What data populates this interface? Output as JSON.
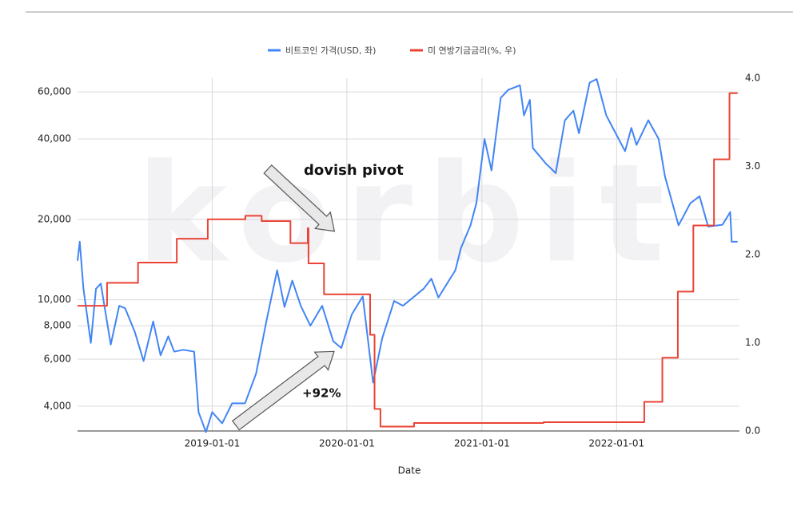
{
  "chart_data": {
    "type": "line",
    "watermark": "korbit",
    "xlabel": "Date",
    "xlim": [
      "2018-01-01",
      "2022-11-30"
    ],
    "xticks": [
      "2019-01-01",
      "2020-01-01",
      "2021-01-01",
      "2022-01-01"
    ],
    "ylim": [
      3230,
      67500
    ],
    "log_y": true,
    "yticks": [
      {
        "value": 4000,
        "label": "4,000"
      },
      {
        "value": 6000,
        "label": "6,000"
      },
      {
        "value": 8000,
        "label": "8,000"
      },
      {
        "value": 10000,
        "label": "10,000"
      },
      {
        "value": 20000,
        "label": "20,000"
      },
      {
        "value": 40000,
        "label": "40,000"
      },
      {
        "value": 60000,
        "label": "60,000"
      }
    ],
    "y2lim": [
      0,
      4
    ],
    "y2ticks": [
      {
        "value": 0,
        "label": "0.0"
      },
      {
        "value": 1,
        "label": "1.0"
      },
      {
        "value": 2,
        "label": "2.0"
      },
      {
        "value": 3,
        "label": "3.0"
      },
      {
        "value": 4,
        "label": "4.0"
      }
    ],
    "grid": true,
    "legend": "top",
    "annotations": [
      {
        "text": "dovish pivot"
      },
      {
        "text": "+92%"
      }
    ],
    "series": [
      {
        "name": "비트코인 가격(USD, 좌)",
        "color": "#4285f4",
        "x": [
          "2018-01-01",
          "2018-01-07",
          "2018-01-17",
          "2018-02-06",
          "2018-02-20",
          "2018-03-05",
          "2018-04-01",
          "2018-04-24",
          "2018-05-10",
          "2018-06-05",
          "2018-06-29",
          "2018-07-25",
          "2018-08-14",
          "2018-09-04",
          "2018-09-20",
          "2018-10-15",
          "2018-11-13",
          "2018-11-25",
          "2018-12-15",
          "2019-01-01",
          "2019-01-28",
          "2019-02-24",
          "2019-03-31",
          "2019-04-30",
          "2019-05-30",
          "2019-06-26",
          "2019-07-16",
          "2019-08-06",
          "2019-08-29",
          "2019-09-24",
          "2019-10-26",
          "2019-11-25",
          "2019-12-17",
          "2020-01-14",
          "2020-02-13",
          "2020-03-12",
          "2020-04-06",
          "2020-05-08",
          "2020-06-01",
          "2020-07-27",
          "2020-08-17",
          "2020-09-05",
          "2020-10-21",
          "2020-11-05",
          "2020-12-01",
          "2020-12-17",
          "2021-01-08",
          "2021-01-27",
          "2021-02-21",
          "2021-03-13",
          "2021-04-14",
          "2021-04-25",
          "2021-05-11",
          "2021-05-19",
          "2021-06-22",
          "2021-07-20",
          "2021-08-14",
          "2021-09-06",
          "2021-09-21",
          "2021-10-20",
          "2021-11-08",
          "2021-12-04",
          "2022-01-24",
          "2022-02-10",
          "2022-02-24",
          "2022-03-28",
          "2022-04-25",
          "2022-05-12",
          "2022-06-18",
          "2022-07-20",
          "2022-08-14",
          "2022-09-06",
          "2022-10-15",
          "2022-11-05",
          "2022-11-09",
          "2022-11-25"
        ],
        "values": [
          14000,
          16500,
          11000,
          6900,
          11000,
          11500,
          6800,
          9500,
          9300,
          7600,
          5900,
          8300,
          6200,
          7300,
          6400,
          6500,
          6400,
          3800,
          3200,
          3800,
          3450,
          4100,
          4100,
          5300,
          8600,
          12900,
          9400,
          11800,
          9500,
          8000,
          9500,
          7000,
          6600,
          8800,
          10300,
          4900,
          7200,
          9900,
          9500,
          11000,
          12000,
          10200,
          12900,
          15600,
          19000,
          23000,
          40000,
          30500,
          57000,
          61000,
          63500,
          49000,
          56000,
          37000,
          32500,
          29800,
          47000,
          51000,
          42000,
          65000,
          67000,
          49000,
          36000,
          44000,
          38000,
          47000,
          40000,
          29000,
          19000,
          23000,
          24400,
          18800,
          19100,
          21300,
          16500,
          16500
        ]
      },
      {
        "name": "미 연방기금금리(%, 우)",
        "color": "#ea4335",
        "axis": "y2",
        "line_shape": "step",
        "x": [
          "2018-01-01",
          "2018-03-22",
          "2018-06-14",
          "2018-09-27",
          "2018-12-20",
          "2019-04-01",
          "2019-05-15",
          "2019-08-01",
          "2019-09-17",
          "2019-09-19",
          "2019-10-31",
          "2020-03-04",
          "2020-03-16",
          "2020-04-01",
          "2020-07-01",
          "2021-06-17",
          "2022-03-17",
          "2022-05-05",
          "2022-06-16",
          "2022-07-28",
          "2022-09-22",
          "2022-11-03",
          "2022-11-25"
        ],
        "values": [
          1.42,
          1.68,
          1.91,
          2.18,
          2.4,
          2.44,
          2.38,
          2.13,
          2.3,
          1.9,
          1.55,
          1.09,
          0.25,
          0.05,
          0.09,
          0.1,
          0.33,
          0.83,
          1.58,
          2.33,
          3.08,
          3.83,
          3.83
        ]
      }
    ]
  }
}
